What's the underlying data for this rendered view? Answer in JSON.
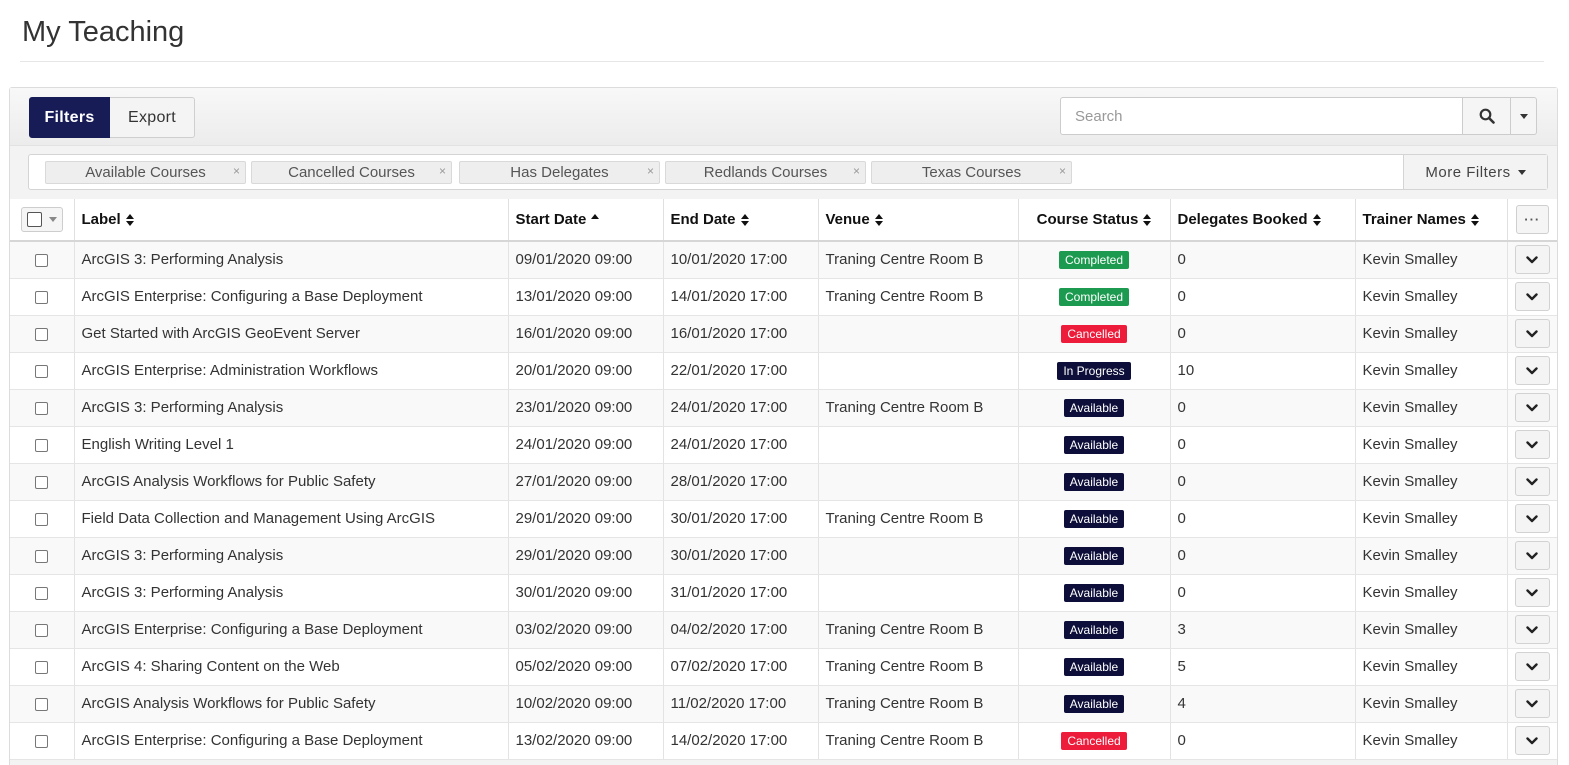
{
  "page": {
    "title": "My Teaching"
  },
  "toolbar": {
    "filters_label": "Filters",
    "export_label": "Export",
    "search_placeholder": "Search"
  },
  "filters": {
    "chips": [
      "Available Courses",
      "Cancelled Courses",
      "Has Delegates",
      "Redlands Courses",
      "Texas Courses"
    ],
    "more_label": "More Filters"
  },
  "table": {
    "columns": {
      "label": "Label",
      "start": "Start Date",
      "end": "End Date",
      "venue": "Venue",
      "status": "Course Status",
      "delegates": "Delegates Booked",
      "trainer": "Trainer Names",
      "more": "···"
    },
    "sorted_column": "Start Date",
    "sort_direction": "ascending",
    "status_colors": {
      "Completed": "#1c9b50",
      "Cancelled": "#ee1c3b",
      "In Progress": "#0d0f3a",
      "Available": "#0d0f3a"
    },
    "rows": [
      {
        "label": "ArcGIS 3: Performing Analysis",
        "start": "09/01/2020 09:00",
        "end": "10/01/2020 17:00",
        "venue": "Traning Centre Room B",
        "status": "Completed",
        "delegates": "0",
        "trainer": "Kevin Smalley"
      },
      {
        "label": "ArcGIS Enterprise: Configuring a Base Deployment",
        "start": "13/01/2020 09:00",
        "end": "14/01/2020 17:00",
        "venue": "Traning Centre Room B",
        "status": "Completed",
        "delegates": "0",
        "trainer": "Kevin Smalley"
      },
      {
        "label": "Get Started with ArcGIS GeoEvent Server",
        "start": "16/01/2020 09:00",
        "end": "16/01/2020 17:00",
        "venue": "",
        "status": "Cancelled",
        "delegates": "0",
        "trainer": "Kevin Smalley"
      },
      {
        "label": "ArcGIS Enterprise: Administration Workflows",
        "start": "20/01/2020 09:00",
        "end": "22/01/2020 17:00",
        "venue": "",
        "status": "In Progress",
        "delegates": "10",
        "trainer": "Kevin Smalley"
      },
      {
        "label": "ArcGIS 3: Performing Analysis",
        "start": "23/01/2020 09:00",
        "end": "24/01/2020 17:00",
        "venue": "Traning Centre Room B",
        "status": "Available",
        "delegates": "0",
        "trainer": "Kevin Smalley"
      },
      {
        "label": "English Writing Level 1",
        "start": "24/01/2020 09:00",
        "end": "24/01/2020 17:00",
        "venue": "",
        "status": "Available",
        "delegates": "0",
        "trainer": "Kevin Smalley"
      },
      {
        "label": "ArcGIS Analysis Workflows for Public Safety",
        "start": "27/01/2020 09:00",
        "end": "28/01/2020 17:00",
        "venue": "",
        "status": "Available",
        "delegates": "0",
        "trainer": "Kevin Smalley"
      },
      {
        "label": "Field Data Collection and Management Using ArcGIS",
        "start": "29/01/2020 09:00",
        "end": "30/01/2020 17:00",
        "venue": "Traning Centre Room B",
        "status": "Available",
        "delegates": "0",
        "trainer": "Kevin Smalley"
      },
      {
        "label": "ArcGIS 3: Performing Analysis",
        "start": "29/01/2020 09:00",
        "end": "30/01/2020 17:00",
        "venue": "",
        "status": "Available",
        "delegates": "0",
        "trainer": "Kevin Smalley"
      },
      {
        "label": "ArcGIS 3: Performing Analysis",
        "start": "30/01/2020 09:00",
        "end": "31/01/2020 17:00",
        "venue": "",
        "status": "Available",
        "delegates": "0",
        "trainer": "Kevin Smalley"
      },
      {
        "label": "ArcGIS Enterprise: Configuring a Base Deployment",
        "start": "03/02/2020 09:00",
        "end": "04/02/2020 17:00",
        "venue": "Traning Centre Room B",
        "status": "Available",
        "delegates": "3",
        "trainer": "Kevin Smalley"
      },
      {
        "label": "ArcGIS 4: Sharing Content on the Web",
        "start": "05/02/2020 09:00",
        "end": "07/02/2020 17:00",
        "venue": "Traning Centre Room B",
        "status": "Available",
        "delegates": "5",
        "trainer": "Kevin Smalley"
      },
      {
        "label": "ArcGIS Analysis Workflows for Public Safety",
        "start": "10/02/2020 09:00",
        "end": "11/02/2020 17:00",
        "venue": "Traning Centre Room B",
        "status": "Available",
        "delegates": "4",
        "trainer": "Kevin Smalley"
      },
      {
        "label": "ArcGIS Enterprise: Configuring a Base Deployment",
        "start": "13/02/2020 09:00",
        "end": "14/02/2020 17:00",
        "venue": "Traning Centre Room B",
        "status": "Cancelled",
        "delegates": "0",
        "trainer": "Kevin Smalley"
      }
    ]
  }
}
